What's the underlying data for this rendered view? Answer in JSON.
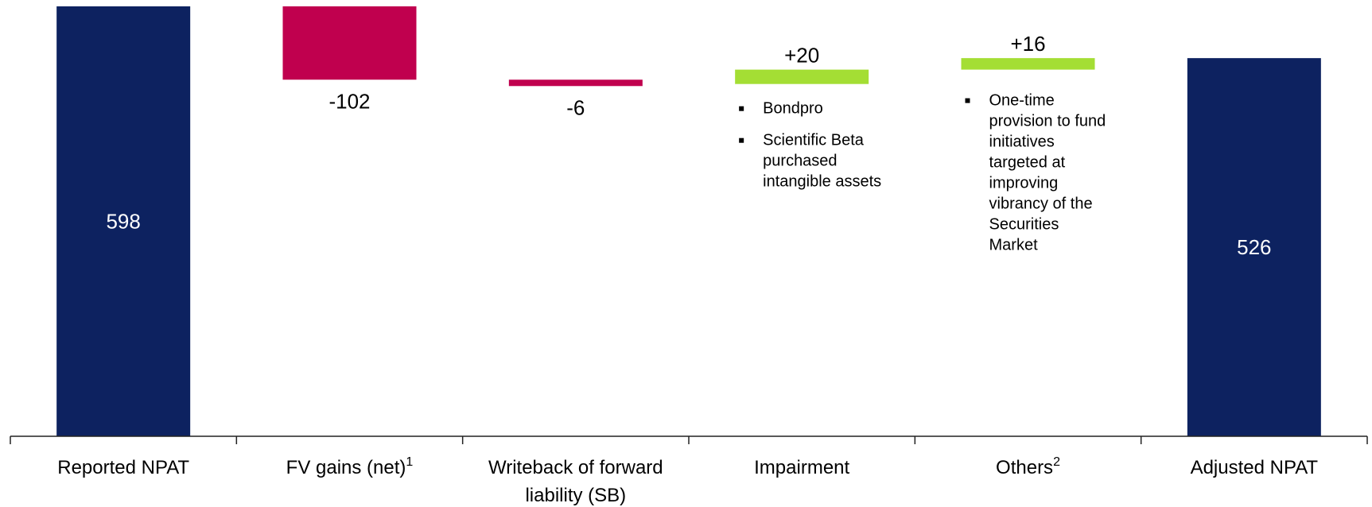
{
  "chart_data": {
    "type": "bar",
    "subtype": "waterfall",
    "categories": [
      {
        "label": "Reported NPAT",
        "lines": [
          "Reported NPAT"
        ],
        "sup": ""
      },
      {
        "label": "FV gains (net)1",
        "lines": [
          "FV gains (net)"
        ],
        "sup": "1"
      },
      {
        "label": "Writeback of forward liability (SB)",
        "lines": [
          "Writeback of forward",
          "liability (SB)"
        ],
        "sup": ""
      },
      {
        "label": "Impairment",
        "lines": [
          "Impairment"
        ],
        "sup": ""
      },
      {
        "label": "Others2",
        "lines": [
          "Others"
        ],
        "sup": "2"
      },
      {
        "label": "Adjusted NPAT",
        "lines": [
          "Adjusted NPAT"
        ],
        "sup": ""
      }
    ],
    "values": [
      598,
      -102,
      -6,
      20,
      16,
      526
    ],
    "value_labels": [
      "598",
      "-102",
      "-6",
      "+20",
      "+16",
      "526"
    ],
    "kinds": [
      "total",
      "delta",
      "delta",
      "delta",
      "delta",
      "total"
    ],
    "ylim": [
      0,
      598
    ],
    "colors": {
      "total": "#0d2260",
      "negative": "#c0004e",
      "positive": "#a4de34"
    },
    "annotations": [
      {
        "category": "Impairment",
        "bullets": [
          [
            "Bondpro"
          ],
          [
            "Scientific Beta",
            "purchased",
            "intangible assets"
          ]
        ]
      },
      {
        "category": "Others2",
        "bullets": [
          [
            "One-time",
            "provision to fund",
            "initiatives",
            "targeted at",
            "improving",
            "vibrancy of the",
            "Securities",
            "Market"
          ]
        ]
      }
    ],
    "title": "",
    "xlabel": "",
    "ylabel": "",
    "grid": false,
    "legend": "none"
  }
}
